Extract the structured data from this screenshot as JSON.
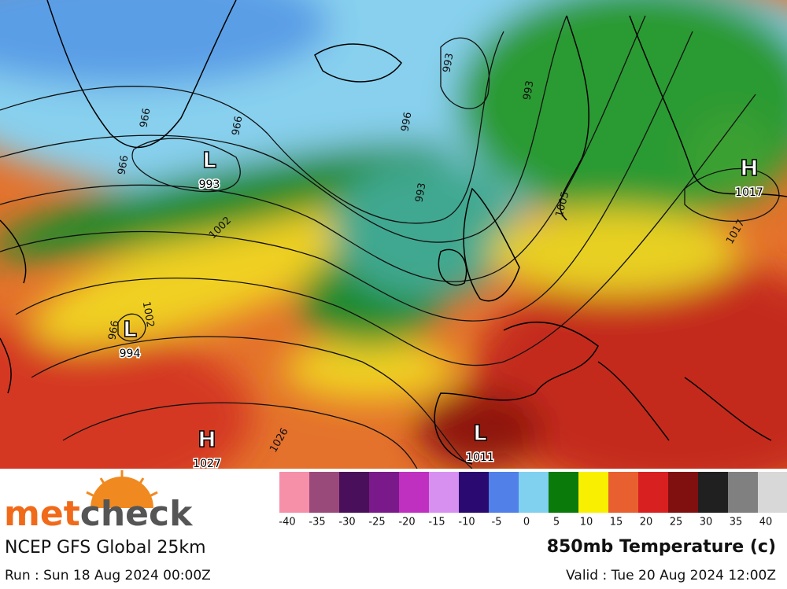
{
  "map": {
    "pressure_centers": [
      {
        "letter": "L",
        "value": 993
      },
      {
        "letter": "L",
        "value": 994
      },
      {
        "letter": "H",
        "value": 1027
      },
      {
        "letter": "L",
        "value": 1011
      },
      {
        "letter": "H",
        "value": 1017
      }
    ],
    "isobar_labels": [
      993,
      993,
      996,
      966,
      966,
      966,
      993,
      1002,
      1005,
      1017,
      1002,
      966,
      1026
    ]
  },
  "legend": {
    "colors": [
      "#f590a8",
      "#9a4a7a",
      "#4a0f5a",
      "#7a1a8a",
      "#c030c0",
      "#d890f0",
      "#2a0a70",
      "#5080e8",
      "#80d0f0",
      "#0a7a0a",
      "#f8f000",
      "#e86030",
      "#d82020",
      "#801010",
      "#202020",
      "#808080",
      "#d8d8d8"
    ],
    "labels": [
      -40,
      -35,
      -30,
      -25,
      -20,
      -15,
      -10,
      -5,
      0,
      5,
      10,
      15,
      20,
      25,
      30,
      35,
      40
    ]
  },
  "logo": {
    "part1": "met",
    "part2": "check"
  },
  "model": "NCEP GFS Global 25km",
  "run": "Run : Sun 18 Aug 2024 00:00Z",
  "title": "850mb Temperature (c)",
  "valid": "Valid : Tue 20 Aug 2024 12:00Z"
}
